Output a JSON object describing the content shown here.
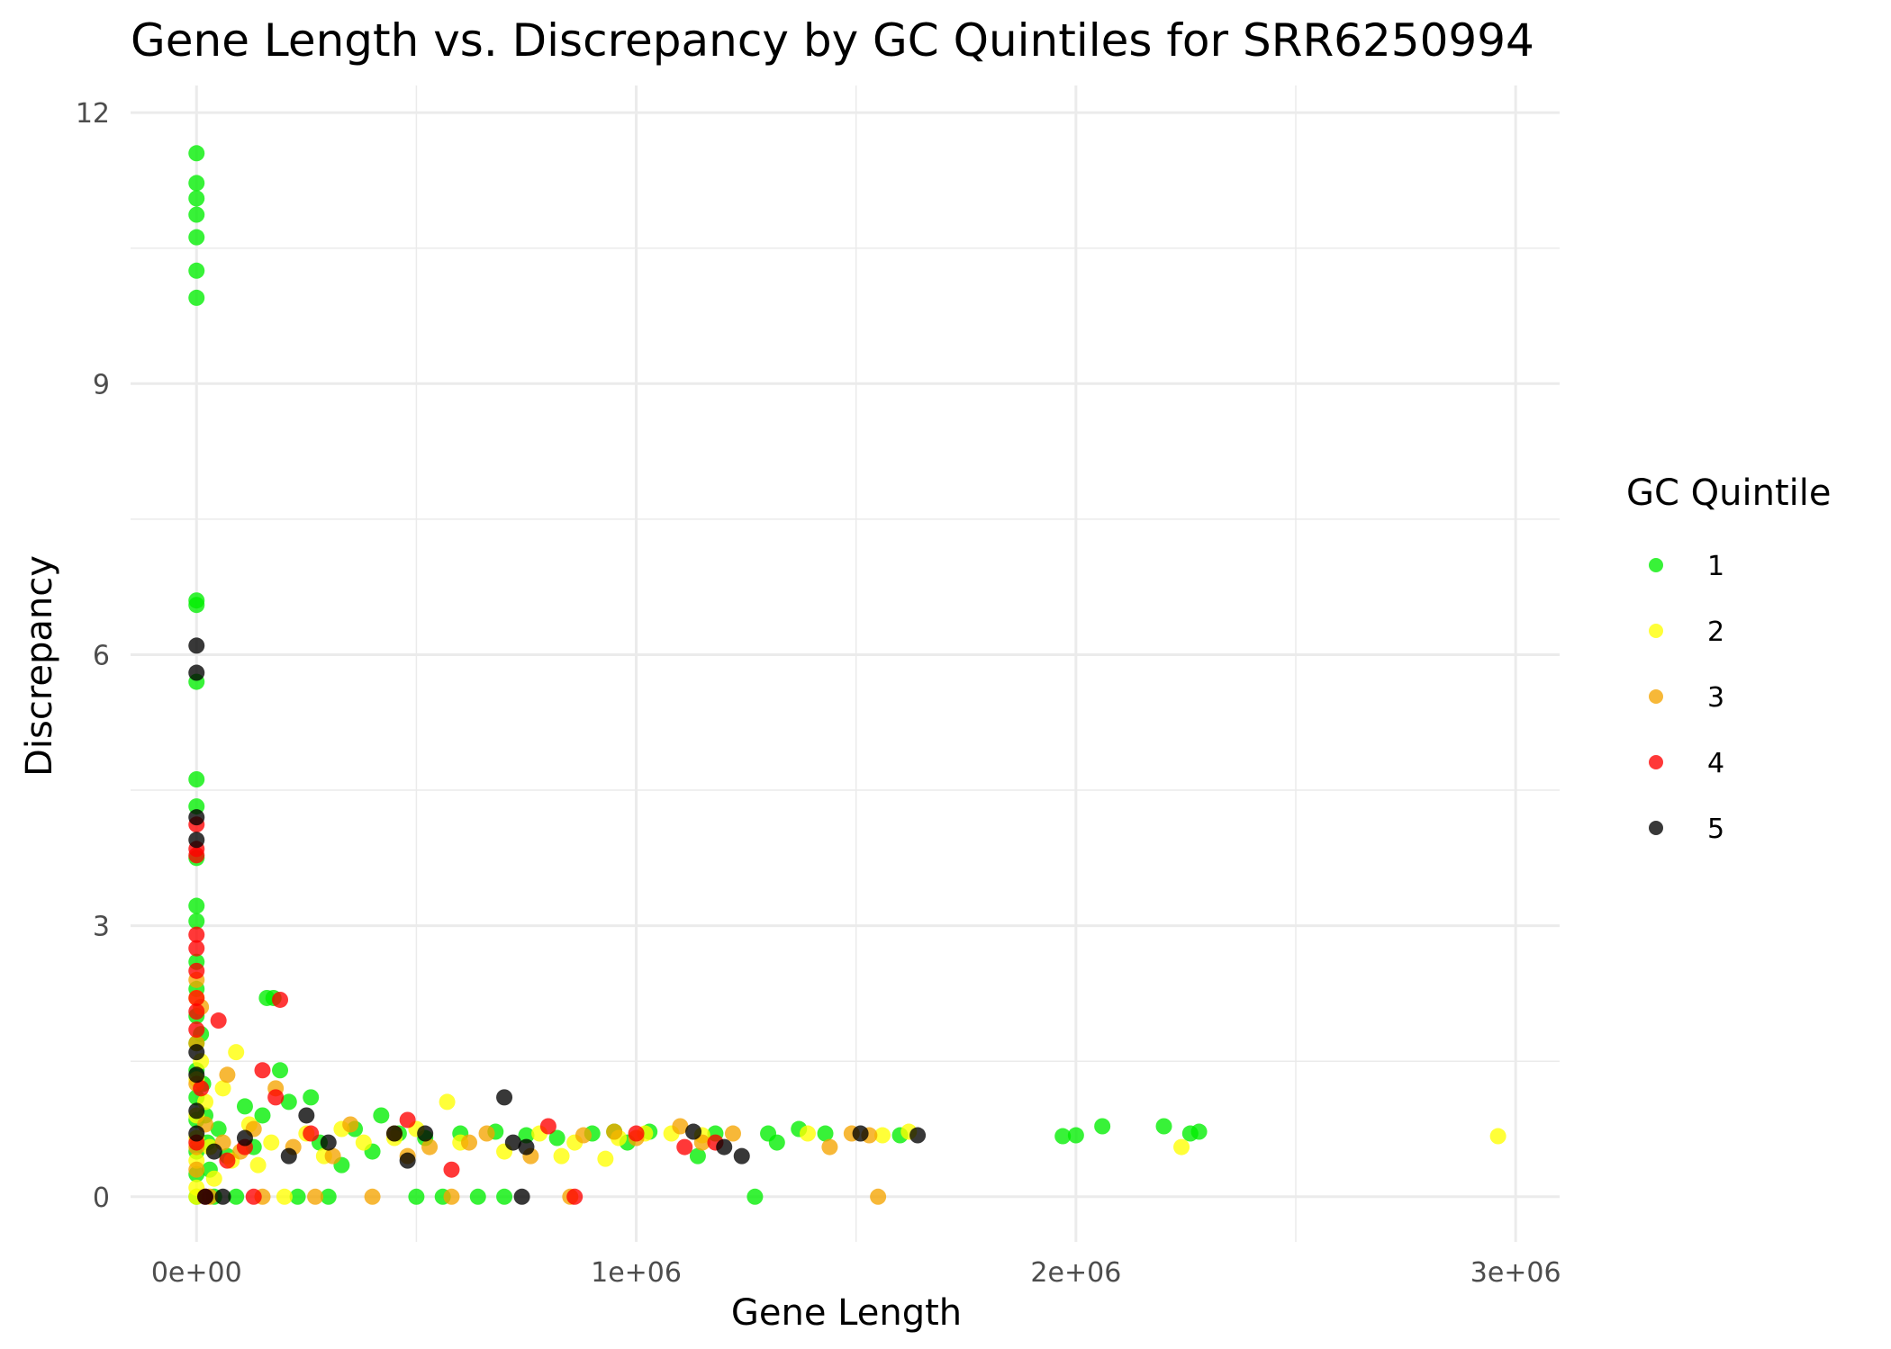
{
  "chart_data": {
    "type": "scatter",
    "title": "Gene Length vs. Discrepancy by GC Quintiles for SRR6250994",
    "xlabel": "Gene Length",
    "ylabel": "Discrepancy",
    "xlim": [
      -150000,
      3100000
    ],
    "ylim": [
      -0.5,
      12.3
    ],
    "xticks": [
      0,
      1000000,
      2000000,
      3000000
    ],
    "xtick_labels": [
      "0e+00",
      "1e+06",
      "2e+06",
      "3e+06"
    ],
    "yticks": [
      0,
      3,
      6,
      9,
      12
    ],
    "ytick_labels": [
      "0",
      "3",
      "6",
      "9",
      "12"
    ],
    "grid": true,
    "legend": {
      "title": "GC Quintile",
      "position": "right"
    },
    "series": [
      {
        "name": "1",
        "color": "#00ee00",
        "points": [
          [
            0,
            11.55
          ],
          [
            0,
            11.22
          ],
          [
            0,
            11.05
          ],
          [
            0,
            10.87
          ],
          [
            0,
            10.62
          ],
          [
            0,
            10.25
          ],
          [
            0,
            9.95
          ],
          [
            0,
            6.6
          ],
          [
            0,
            6.55
          ],
          [
            0,
            5.7
          ],
          [
            0,
            4.62
          ],
          [
            0,
            4.32
          ],
          [
            0,
            3.75
          ],
          [
            0,
            3.22
          ],
          [
            0,
            3.05
          ],
          [
            0,
            2.6
          ],
          [
            0,
            2.3
          ],
          [
            0,
            2.0
          ],
          [
            0,
            1.7
          ],
          [
            0,
            1.4
          ],
          [
            0,
            1.1
          ],
          [
            0,
            0.85
          ],
          [
            0,
            0.5
          ],
          [
            0,
            0.25
          ],
          [
            0,
            0.0
          ],
          [
            10000,
            1.8
          ],
          [
            15000,
            1.25
          ],
          [
            20000,
            0.9
          ],
          [
            25000,
            0.6
          ],
          [
            30000,
            0.3
          ],
          [
            40000,
            0.0
          ],
          [
            50000,
            0.75
          ],
          [
            70000,
            0.45
          ],
          [
            90000,
            0.0
          ],
          [
            110000,
            1.0
          ],
          [
            130000,
            0.55
          ],
          [
            150000,
            0.9
          ],
          [
            160000,
            2.2
          ],
          [
            175000,
            2.2
          ],
          [
            190000,
            1.4
          ],
          [
            210000,
            1.05
          ],
          [
            230000,
            0.0
          ],
          [
            260000,
            1.1
          ],
          [
            280000,
            0.6
          ],
          [
            300000,
            0.0
          ],
          [
            330000,
            0.35
          ],
          [
            360000,
            0.75
          ],
          [
            400000,
            0.5
          ],
          [
            420000,
            0.9
          ],
          [
            460000,
            0.7
          ],
          [
            500000,
            0.0
          ],
          [
            520000,
            0.65
          ],
          [
            560000,
            0.0
          ],
          [
            600000,
            0.7
          ],
          [
            640000,
            0.0
          ],
          [
            680000,
            0.72
          ],
          [
            700000,
            0.0
          ],
          [
            750000,
            0.68
          ],
          [
            820000,
            0.65
          ],
          [
            900000,
            0.7
          ],
          [
            950000,
            0.72
          ],
          [
            980000,
            0.6
          ],
          [
            1030000,
            0.72
          ],
          [
            1140000,
            0.45
          ],
          [
            1180000,
            0.7
          ],
          [
            1270000,
            0.0
          ],
          [
            1300000,
            0.7
          ],
          [
            1320000,
            0.6
          ],
          [
            1370000,
            0.75
          ],
          [
            1430000,
            0.7
          ],
          [
            1600000,
            0.68
          ],
          [
            1970000,
            0.67
          ],
          [
            2000000,
            0.68
          ],
          [
            2060000,
            0.78
          ],
          [
            2200000,
            0.78
          ],
          [
            2260000,
            0.7
          ],
          [
            2280000,
            0.72
          ]
        ]
      },
      {
        "name": "2",
        "color": "#ffff00",
        "points": [
          [
            0,
            2.2
          ],
          [
            0,
            1.3
          ],
          [
            0,
            0.9
          ],
          [
            0,
            0.65
          ],
          [
            0,
            0.4
          ],
          [
            0,
            0.1
          ],
          [
            0,
            0.0
          ],
          [
            10000,
            1.5
          ],
          [
            20000,
            1.05
          ],
          [
            30000,
            0.55
          ],
          [
            40000,
            0.2
          ],
          [
            60000,
            1.2
          ],
          [
            80000,
            0.4
          ],
          [
            90000,
            1.6
          ],
          [
            120000,
            0.8
          ],
          [
            140000,
            0.35
          ],
          [
            170000,
            0.6
          ],
          [
            200000,
            0.0
          ],
          [
            250000,
            0.7
          ],
          [
            290000,
            0.45
          ],
          [
            330000,
            0.75
          ],
          [
            380000,
            0.6
          ],
          [
            450000,
            0.65
          ],
          [
            500000,
            0.75
          ],
          [
            570000,
            1.05
          ],
          [
            600000,
            0.6
          ],
          [
            700000,
            0.5
          ],
          [
            780000,
            0.7
          ],
          [
            830000,
            0.45
          ],
          [
            860000,
            0.6
          ],
          [
            930000,
            0.42
          ],
          [
            960000,
            0.65
          ],
          [
            1020000,
            0.7
          ],
          [
            1080000,
            0.7
          ],
          [
            1150000,
            0.68
          ],
          [
            1390000,
            0.7
          ],
          [
            1560000,
            0.68
          ],
          [
            1620000,
            0.72
          ],
          [
            2240000,
            0.55
          ],
          [
            2960000,
            0.67
          ]
        ]
      },
      {
        "name": "3",
        "color": "#f5a400",
        "points": [
          [
            0,
            2.4
          ],
          [
            0,
            1.7
          ],
          [
            0,
            1.25
          ],
          [
            0,
            0.55
          ],
          [
            0,
            0.3
          ],
          [
            10000,
            2.1
          ],
          [
            20000,
            0.8
          ],
          [
            30000,
            0.0
          ],
          [
            60000,
            0.6
          ],
          [
            70000,
            1.35
          ],
          [
            100000,
            0.5
          ],
          [
            130000,
            0.75
          ],
          [
            150000,
            0.0
          ],
          [
            180000,
            1.2
          ],
          [
            220000,
            0.55
          ],
          [
            270000,
            0.0
          ],
          [
            310000,
            0.45
          ],
          [
            350000,
            0.8
          ],
          [
            400000,
            0.0
          ],
          [
            450000,
            0.7
          ],
          [
            480000,
            0.45
          ],
          [
            530000,
            0.55
          ],
          [
            580000,
            0.0
          ],
          [
            620000,
            0.6
          ],
          [
            660000,
            0.7
          ],
          [
            760000,
            0.45
          ],
          [
            850000,
            0.0
          ],
          [
            880000,
            0.68
          ],
          [
            950000,
            0.72
          ],
          [
            1000000,
            0.65
          ],
          [
            1100000,
            0.78
          ],
          [
            1150000,
            0.6
          ],
          [
            1220000,
            0.7
          ],
          [
            1440000,
            0.55
          ],
          [
            1490000,
            0.7
          ],
          [
            1530000,
            0.68
          ],
          [
            1550000,
            0.0
          ]
        ]
      },
      {
        "name": "4",
        "color": "#ff0000",
        "points": [
          [
            0,
            4.12
          ],
          [
            0,
            3.85
          ],
          [
            0,
            3.78
          ],
          [
            0,
            2.9
          ],
          [
            0,
            2.75
          ],
          [
            0,
            2.5
          ],
          [
            0,
            2.2
          ],
          [
            0,
            2.05
          ],
          [
            0,
            1.85
          ],
          [
            0,
            0.6
          ],
          [
            10000,
            1.2
          ],
          [
            20000,
            0.0
          ],
          [
            50000,
            1.95
          ],
          [
            70000,
            0.4
          ],
          [
            110000,
            0.55
          ],
          [
            130000,
            0.0
          ],
          [
            150000,
            1.4
          ],
          [
            180000,
            1.1
          ],
          [
            190000,
            2.18
          ],
          [
            260000,
            0.7
          ],
          [
            480000,
            0.85
          ],
          [
            580000,
            0.3
          ],
          [
            800000,
            0.78
          ],
          [
            860000,
            0.0
          ],
          [
            1000000,
            0.7
          ],
          [
            1110000,
            0.55
          ],
          [
            1180000,
            0.6
          ]
        ]
      },
      {
        "name": "5",
        "color": "#000000",
        "points": [
          [
            0,
            6.1
          ],
          [
            0,
            5.8
          ],
          [
            0,
            4.2
          ],
          [
            0,
            3.95
          ],
          [
            0,
            1.6
          ],
          [
            0,
            1.35
          ],
          [
            0,
            0.95
          ],
          [
            0,
            0.7
          ],
          [
            20000,
            0.0
          ],
          [
            40000,
            0.5
          ],
          [
            60000,
            0.0
          ],
          [
            110000,
            0.65
          ],
          [
            210000,
            0.45
          ],
          [
            250000,
            0.9
          ],
          [
            300000,
            0.6
          ],
          [
            450000,
            0.7
          ],
          [
            480000,
            0.4
          ],
          [
            520000,
            0.7
          ],
          [
            700000,
            1.1
          ],
          [
            720000,
            0.6
          ],
          [
            740000,
            0.0
          ],
          [
            750000,
            0.55
          ],
          [
            1130000,
            0.72
          ],
          [
            1200000,
            0.55
          ],
          [
            1240000,
            0.45
          ],
          [
            1510000,
            0.7
          ],
          [
            1640000,
            0.68
          ]
        ]
      }
    ]
  }
}
